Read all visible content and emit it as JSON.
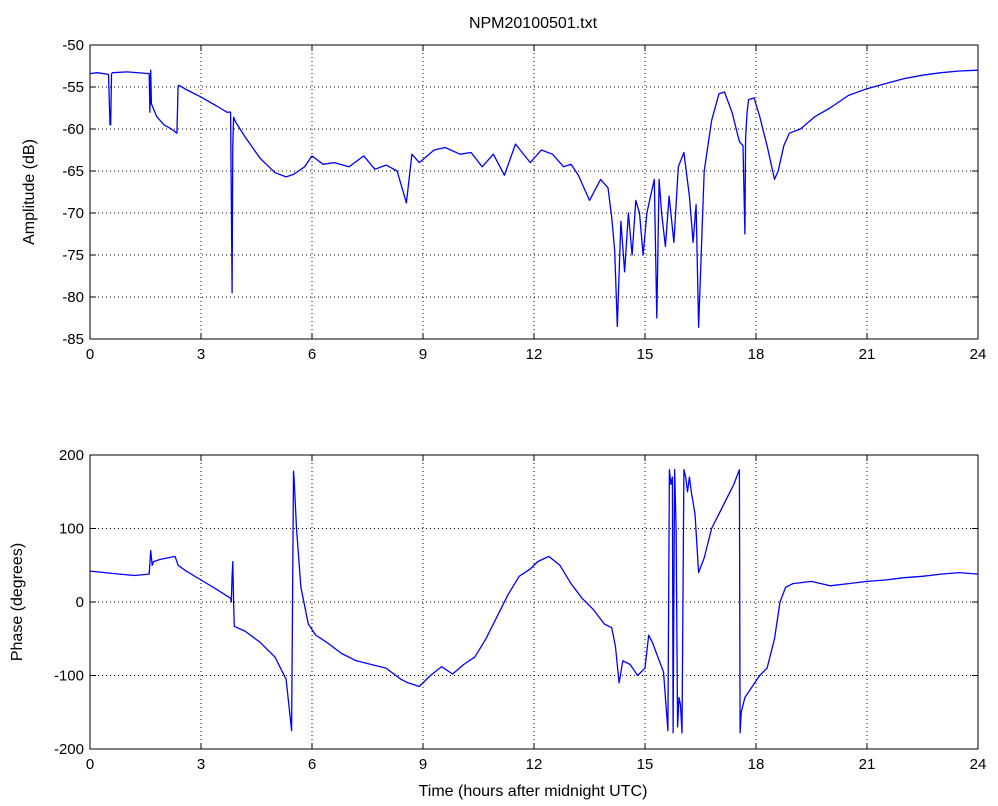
{
  "chart_data": [
    {
      "type": "line",
      "title": "NPM20100501.txt",
      "xlabel": "",
      "ylabel": "Amplitude (dB)",
      "xlim": [
        0,
        24
      ],
      "ylim": [
        -85,
        -50
      ],
      "xticks": [
        "0",
        "3",
        "6",
        "9",
        "12",
        "15",
        "18",
        "21",
        "24"
      ],
      "yticks": [
        "-50",
        "-55",
        "-60",
        "-65",
        "-70",
        "-75",
        "-80",
        "-85"
      ],
      "grid": true,
      "color": "#0000ff",
      "series": [
        {
          "x": [
            0,
            0.2,
            0.5,
            0.54,
            0.56,
            0.58,
            0.6,
            0.62,
            1.0,
            1.6,
            1.62,
            1.64,
            1.66,
            1.8,
            2.0,
            2.2,
            2.35,
            2.38,
            2.4,
            2.6,
            3.0,
            3.4,
            3.7,
            3.8,
            3.84,
            3.86,
            3.88,
            3.9,
            3.92,
            3.94,
            4.2,
            4.6,
            5.0,
            5.3,
            5.5,
            5.8,
            6.0,
            6.3,
            6.6,
            7.0,
            7.4,
            7.7,
            8.0,
            8.3,
            8.55,
            8.7,
            8.9,
            9.3,
            9.6,
            10.0,
            10.3,
            10.6,
            10.9,
            11.2,
            11.5,
            11.9,
            12.2,
            12.5,
            12.8,
            13.0,
            13.2,
            13.5,
            13.8,
            14.0,
            14.1,
            14.18,
            14.25,
            14.35,
            14.45,
            14.55,
            14.65,
            14.75,
            14.85,
            14.95,
            15.05,
            15.15,
            15.25,
            15.32,
            15.38,
            15.45,
            15.55,
            15.65,
            15.78,
            15.9,
            16.05,
            16.2,
            16.3,
            16.38,
            16.45,
            16.6,
            16.8,
            17.0,
            17.15,
            17.35,
            17.55,
            17.65,
            17.7,
            17.72,
            17.76,
            17.8,
            17.95,
            18.1,
            18.3,
            18.5,
            18.6,
            18.75,
            18.9,
            19.2,
            19.6,
            20.0,
            20.5,
            21.0,
            21.5,
            22.0,
            22.5,
            23.0,
            23.5,
            24.0
          ],
          "values": [
            -53.4,
            -53.3,
            -53.5,
            -59.5,
            -59.5,
            -53.5,
            -53.3,
            -53.3,
            -53.2,
            -53.4,
            -58.0,
            -53.0,
            -57.0,
            -58.5,
            -59.5,
            -60.0,
            -60.5,
            -55.0,
            -54.8,
            -55.3,
            -56.2,
            -57.2,
            -58.0,
            -58.0,
            -79.5,
            -62.0,
            -58.6,
            -58.8,
            -59.0,
            -59.2,
            -61.0,
            -63.5,
            -65.2,
            -65.7,
            -65.4,
            -64.5,
            -63.2,
            -64.2,
            -64.0,
            -64.5,
            -63.2,
            -64.8,
            -64.3,
            -65.0,
            -68.8,
            -63.0,
            -64.0,
            -62.5,
            -62.2,
            -63.0,
            -62.8,
            -64.5,
            -63.0,
            -65.5,
            -61.8,
            -64.0,
            -62.5,
            -63.0,
            -64.5,
            -64.2,
            -65.5,
            -68.5,
            -66.0,
            -67.0,
            -70.5,
            -74.5,
            -83.5,
            -71.0,
            -77.0,
            -70.0,
            -75.0,
            -68.5,
            -70.0,
            -75.0,
            -70.0,
            -68.0,
            -66.0,
            -82.5,
            -66.0,
            -70.0,
            -74.0,
            -68.0,
            -73.5,
            -64.5,
            -62.8,
            -68.0,
            -73.5,
            -69.0,
            -83.6,
            -65.0,
            -59.0,
            -55.8,
            -55.6,
            -58.0,
            -61.5,
            -62.0,
            -72.5,
            -61.0,
            -58.0,
            -56.5,
            -56.3,
            -58.5,
            -62.0,
            -66.0,
            -65.0,
            -62.0,
            -60.5,
            -60.0,
            -58.5,
            -57.5,
            -56.0,
            -55.2,
            -54.6,
            -54.0,
            -53.6,
            -53.3,
            -53.1,
            -53.0
          ]
        }
      ]
    },
    {
      "type": "line",
      "title": "",
      "xlabel": "Time (hours after midnight UTC)",
      "ylabel": "Phase (degrees)",
      "xlim": [
        0,
        24
      ],
      "ylim": [
        -200,
        200
      ],
      "xticks": [
        "0",
        "3",
        "6",
        "9",
        "12",
        "15",
        "18",
        "21",
        "24"
      ],
      "yticks": [
        "200",
        "100",
        "0",
        "-100",
        "-200"
      ],
      "grid": true,
      "color": "#0000ff",
      "series": [
        {
          "x": [
            0,
            0.4,
            0.8,
            1.2,
            1.6,
            1.64,
            1.68,
            1.72,
            1.9,
            2.1,
            2.3,
            2.38,
            2.6,
            3.0,
            3.4,
            3.8,
            3.82,
            3.84,
            3.86,
            3.88,
            3.9,
            4.2,
            4.6,
            5.0,
            5.3,
            5.45,
            5.5,
            5.52,
            5.58,
            5.7,
            5.9,
            6.1,
            6.4,
            6.8,
            7.2,
            7.6,
            8.0,
            8.4,
            8.6,
            8.9,
            9.2,
            9.5,
            9.8,
            10.1,
            10.4,
            10.7,
            11.0,
            11.3,
            11.6,
            11.9,
            12.1,
            12.4,
            12.7,
            13.0,
            13.3,
            13.6,
            13.9,
            14.1,
            14.2,
            14.3,
            14.4,
            14.6,
            14.8,
            15.0,
            15.1,
            15.2,
            15.35,
            15.5,
            15.62,
            15.66,
            15.7,
            15.74,
            15.76,
            15.8,
            15.84,
            15.88,
            15.92,
            15.96,
            16.0,
            16.05,
            16.1,
            16.15,
            16.2,
            16.25,
            16.35,
            16.45,
            16.6,
            16.8,
            17.0,
            17.2,
            17.4,
            17.55,
            17.57,
            17.6,
            17.7,
            17.9,
            18.1,
            18.3,
            18.5,
            18.65,
            18.8,
            19.0,
            19.5,
            20.0,
            20.5,
            21.0,
            21.5,
            22.0,
            22.5,
            23.0,
            23.5,
            24.0
          ],
          "values": [
            42,
            40,
            38,
            36,
            38,
            70,
            50,
            55,
            58,
            60,
            62,
            50,
            42,
            30,
            18,
            5,
            0,
            35,
            55,
            0,
            -33,
            -40,
            -55,
            -75,
            -105,
            -175,
            178,
            165,
            100,
            20,
            -30,
            -45,
            -55,
            -70,
            -80,
            -85,
            -90,
            -105,
            -110,
            -115,
            -100,
            -88,
            -98,
            -85,
            -75,
            -50,
            -20,
            10,
            35,
            45,
            55,
            62,
            50,
            25,
            5,
            -10,
            -30,
            -35,
            -60,
            -110,
            -80,
            -85,
            -100,
            -90,
            -45,
            -55,
            -75,
            -95,
            -175,
            180,
            160,
            170,
            -178,
            180,
            100,
            -170,
            -130,
            -140,
            -178,
            180,
            170,
            150,
            170,
            150,
            120,
            40,
            60,
            100,
            120,
            140,
            160,
            180,
            -178,
            -150,
            -130,
            -115,
            -100,
            -90,
            -50,
            0,
            20,
            25,
            28,
            22,
            25,
            28,
            30,
            33,
            35,
            38,
            40,
            38
          ]
        }
      ]
    }
  ]
}
